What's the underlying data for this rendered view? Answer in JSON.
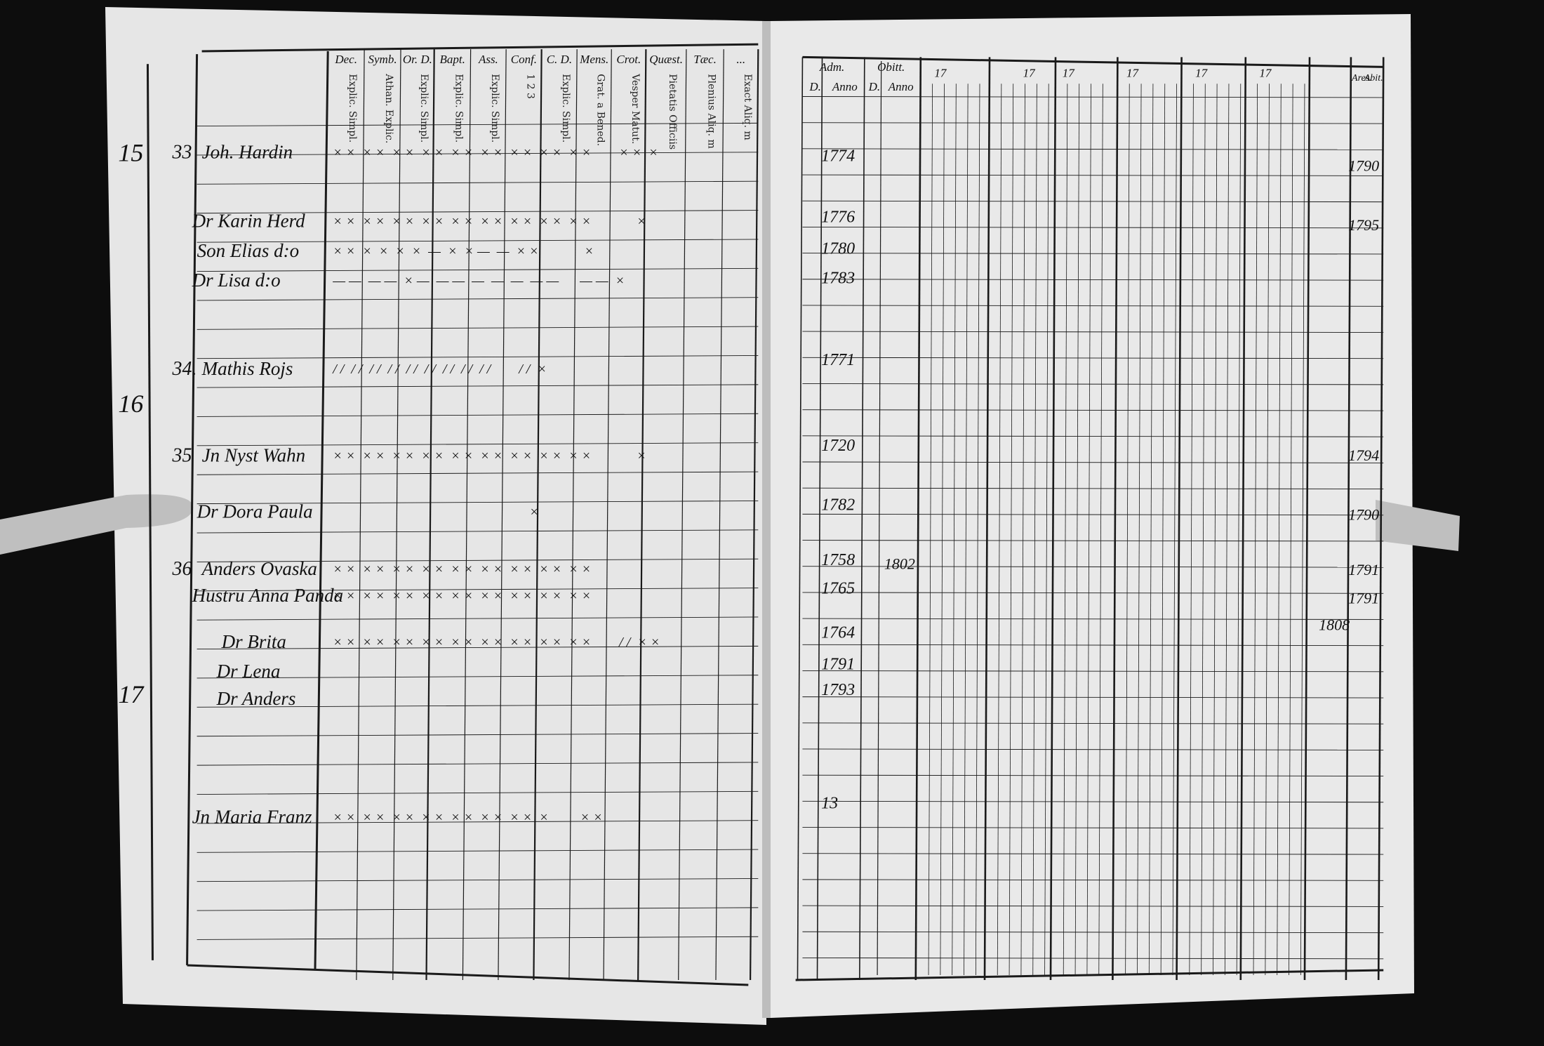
{
  "left_page": {
    "headers": [
      {
        "title": "Dec.",
        "sub": "Explic. Simpl."
      },
      {
        "title": "Symb.",
        "sub": "Athan. Explic."
      },
      {
        "title": "Or. D.",
        "sub": "Explic. Simpl."
      },
      {
        "title": "Bapt.",
        "sub": "Explic. Simpl."
      },
      {
        "title": "Ass.",
        "sub": "Explic. Simpl."
      },
      {
        "title": "Conf.",
        "sub": "1 2 3"
      },
      {
        "title": "C. D.",
        "sub": "Explic. Simpl."
      },
      {
        "title": "Mens.",
        "sub": "Grat. a Bened."
      },
      {
        "title": "Crot.",
        "sub": "Vesper Matut."
      },
      {
        "title": "Quæst.",
        "sub": "Pietatis Officiis"
      },
      {
        "title": "Tæc.",
        "sub": "Plenius Aliq. m"
      },
      {
        "title": "...",
        "sub": "Exact Aliq. m"
      }
    ],
    "margin_numbers": [
      "15",
      "16",
      "17"
    ],
    "entries": [
      {
        "no": "33",
        "name": "Joh. Hardin",
        "marks": "× ×  × ×  × ×  × ×  × ×  × ×  × ×  × ×  × ×        × ×  ×"
      },
      {
        "no": "",
        "name": "Dr Karin Herd",
        "marks": "× ×  × ×  × ×  × ×  × ×  × ×  × ×  × ×  × ×             ×"
      },
      {
        "no": "",
        "name": "Son Elias d:o",
        "marks": "× ×  ×  ×  ×  ×  —  ×  × —  —  × ×             ×"
      },
      {
        "no": "",
        "name": "Dr Lisa d:o",
        "marks": "— —  — —  × —  — —  —  —  —  — —      — —  ×"
      },
      {
        "no": "34.",
        "name": "Mathis Rojs",
        "marks": "/ /  / /  / /  / /  / /  / /  / /  / /  / /        / /  ×"
      },
      {
        "no": "35",
        "name": "Jn Nyst Wahn",
        "marks": "× ×  × ×  × ×  × ×  × ×  × ×  × ×  × ×  × ×             ×"
      },
      {
        "no": "",
        "name": "Dr Dora Paula",
        "marks": "                                                        ×"
      },
      {
        "no": "36",
        "name": "Anders Ovaska",
        "marks": "× ×  × ×  × ×  × ×  × ×  × ×  × ×  × ×  × ×"
      },
      {
        "no": "",
        "name": "Hustru Anna Panda",
        "marks": "× ×  × ×  × ×  × ×  × ×  × ×  × ×  × ×  × ×"
      },
      {
        "no": "",
        "name": "Dr Brita",
        "marks": "× ×  × ×  × ×  × ×  × ×  × ×  × ×  × ×  × ×        / /  × ×"
      },
      {
        "no": "",
        "name": "Dr Lena",
        "marks": ""
      },
      {
        "no": "",
        "name": "Dr Anders",
        "marks": ""
      },
      {
        "no": "",
        "name": "Jn Maria Franz",
        "marks": "× ×  × ×  × ×  × ×  × ×  × ×  × ×  ×         × ×"
      }
    ]
  },
  "right_page": {
    "headers": [
      "Adm.",
      "Obitt.",
      "D.",
      "Anno",
      "D.",
      "Anno",
      "17",
      "17",
      "17",
      "17",
      "17",
      "17",
      "Ares.",
      "Abit."
    ],
    "years": [
      "1774",
      "1776",
      "1780",
      "1783",
      "1771",
      "1720",
      "1782",
      "1758",
      "1765",
      "1764",
      "1791",
      "1793",
      "13"
    ],
    "departures": [
      "1790",
      "1795",
      "1794",
      "1790",
      "1791",
      "1791",
      "1808"
    ],
    "other_year": "1802"
  }
}
